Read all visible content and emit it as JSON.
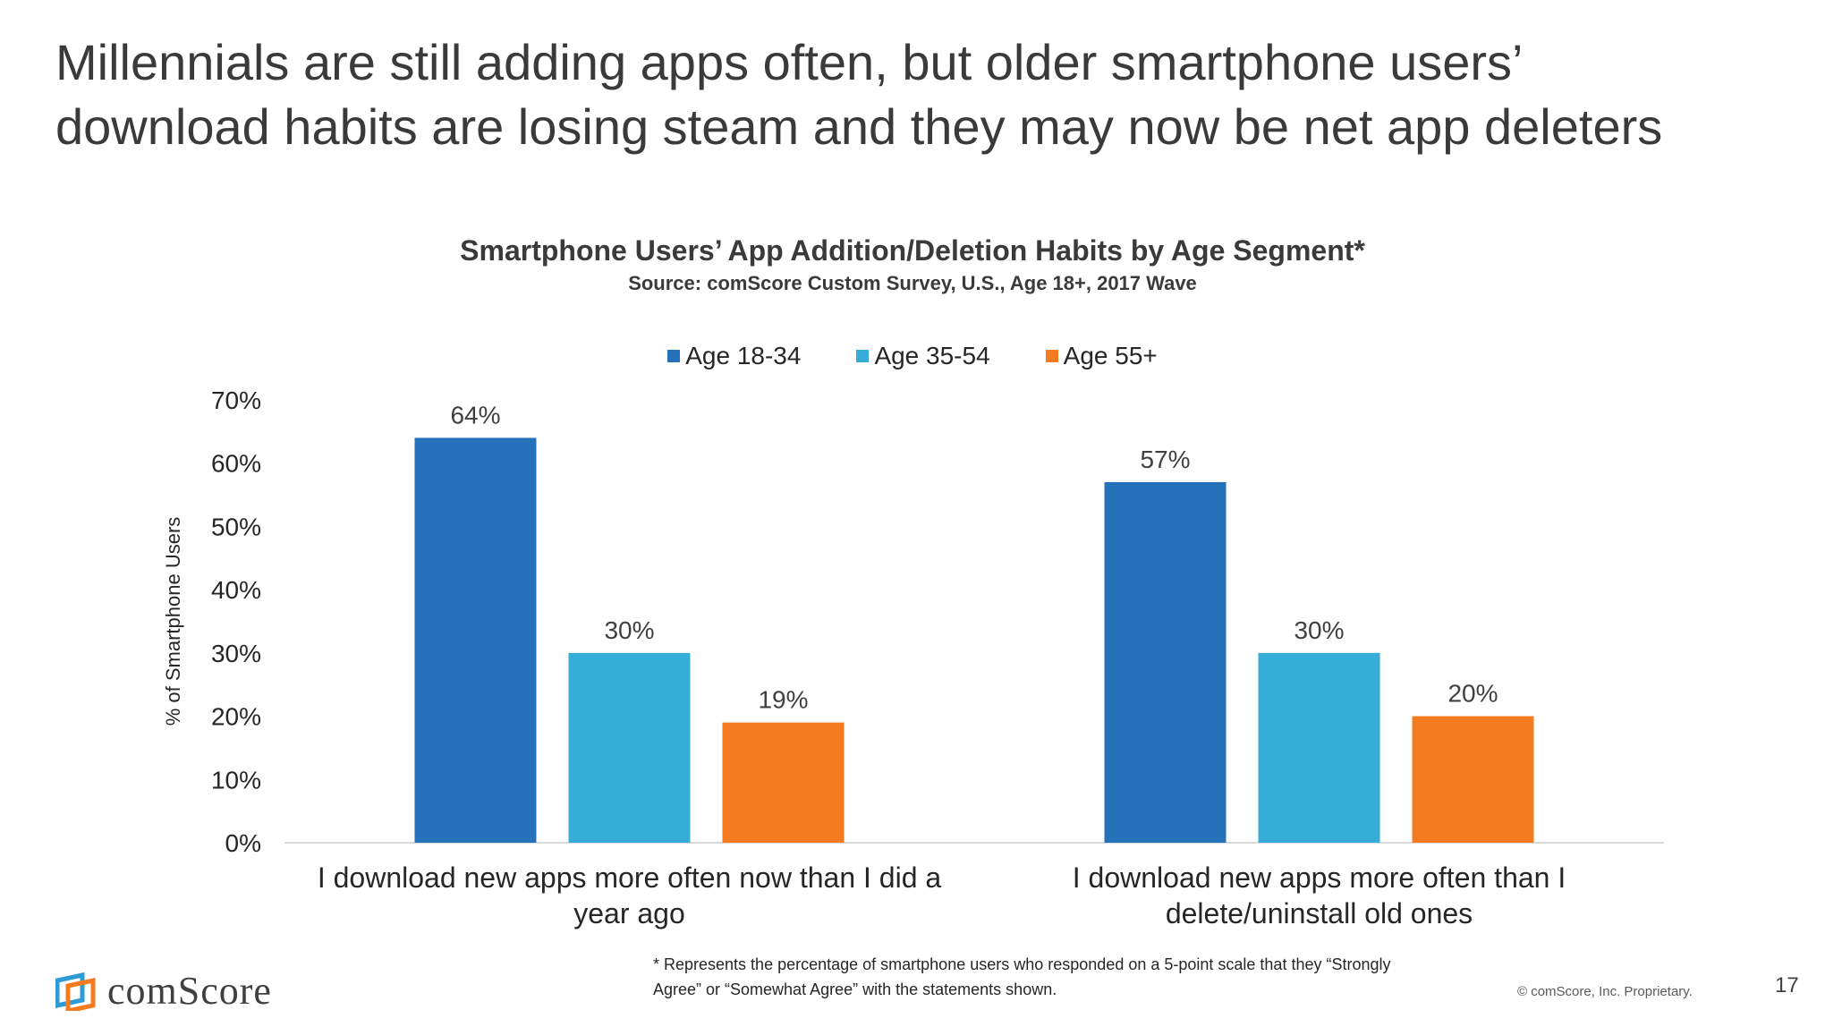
{
  "slide": {
    "title_line1": "Millennials are still adding apps often, but older smartphone users’",
    "title_line2": "download habits are losing steam and they may now be net app deleters"
  },
  "chart_data": {
    "type": "bar",
    "title": "Smartphone Users’ App Addition/Deletion Habits by Age Segment*",
    "subtitle": "Source: comScore Custom Survey, U.S., Age 18+, 2017 Wave",
    "ylabel": "% of Smartphone Users",
    "xlabel": "",
    "ylim": [
      0,
      70
    ],
    "yticks": [
      0,
      10,
      20,
      30,
      40,
      50,
      60,
      70
    ],
    "ytick_labels": [
      "0%",
      "10%",
      "20%",
      "30%",
      "40%",
      "50%",
      "60%",
      "70%"
    ],
    "legend_position": "top",
    "grid": false,
    "categories": [
      [
        "I download new apps more often now than I did a",
        "year ago"
      ],
      [
        "I download new apps more often than I",
        "delete/uninstall old ones"
      ]
    ],
    "series": [
      {
        "name": "Age 18-34",
        "color": "#2672ba",
        "values": [
          64,
          57
        ],
        "labels": [
          "64%",
          "57%"
        ]
      },
      {
        "name": "Age 35-54",
        "color": "#36acd8",
        "values": [
          30,
          30
        ],
        "labels": [
          "30%",
          "30%"
        ]
      },
      {
        "name": "Age 55+",
        "color": "#f47b20",
        "values": [
          19,
          20
        ],
        "labels": [
          "19%",
          "20%"
        ]
      }
    ]
  },
  "footer": {
    "footnote_line1": "* Represents the percentage of smartphone users who responded on a 5-point scale that they “Strongly",
    "footnote_line2": "Agree” or “Somewhat Agree” with the statements shown.",
    "logo_text": "comScore",
    "logo_colors": {
      "blue": "#2e9bd6",
      "orange": "#f47b20"
    },
    "copyright": "© comScore, Inc. Proprietary.",
    "page_number": "17"
  }
}
